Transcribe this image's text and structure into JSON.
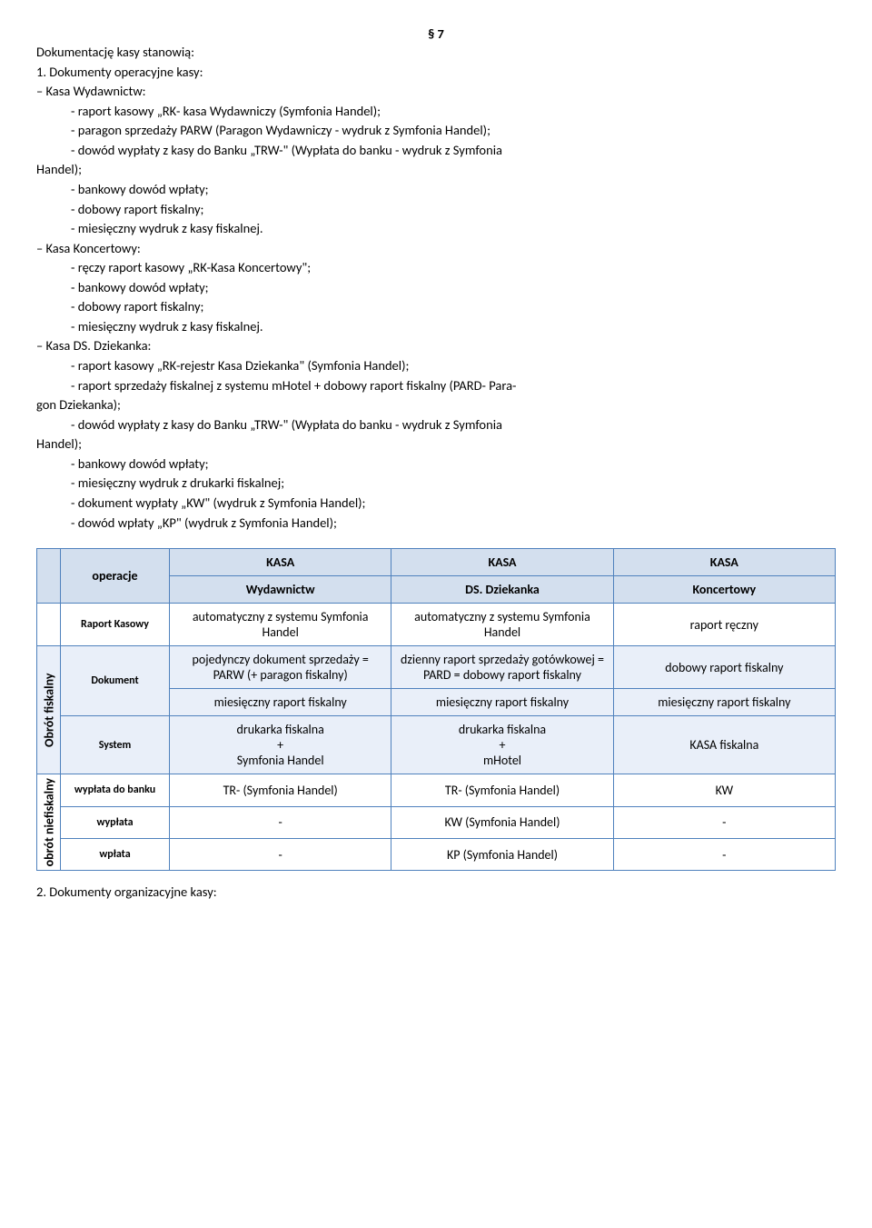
{
  "section_number": "§ 7",
  "intro": "Dokumentację kasy stanowią:",
  "point1_label": "1. Dokumenty operacyjne kasy:",
  "kw_title": "– Kasa Wydawnictw:",
  "kw_items": [
    "- raport kasowy „RK- kasa Wydawniczy (Symfonia Handel);",
    "- paragon sprzedaży PARW (Paragon Wydawniczy - wydruk z Symfonia Handel);",
    "- dowód wypłaty z kasy do Banku „TRW-\" (Wypłata do banku - wydruk z Symfonia",
    "Handel);",
    "- bankowy dowód wpłaty;",
    "- dobowy raport fiskalny;",
    "- miesięczny wydruk z kasy fiskalnej."
  ],
  "kk_title": "– Kasa Koncertowy:",
  "kk_items": [
    "- ręczy raport kasowy „RK-Kasa Koncertowy\";",
    "- bankowy dowód wpłaty;",
    "- dobowy raport fiskalny;",
    "- miesięczny wydruk z kasy fiskalnej."
  ],
  "kd_title": "– Kasa DS. Dziekanka:",
  "kd_items": [
    "- raport kasowy „RK-rejestr Kasa Dziekanka\" (Symfonia Handel);",
    "- raport sprzedaży fiskalnej z systemu mHotel + dobowy raport fiskalny (PARD- Para-",
    "gon     Dziekanka);",
    "- dowód wypłaty z kasy do Banku „TRW-\" (Wypłata do banku - wydruk z Symfonia",
    "Handel);",
    "- bankowy dowód wpłaty;",
    "- miesięczny wydruk z drukarki fiskalnej;",
    "- dokument wypłaty „KW\" (wydruk z Symfonia Handel);",
    "- dowód wpłaty „KP\" (wydruk z Symfonia Handel);"
  ],
  "table": {
    "header": {
      "operacje": "operacje",
      "col1_top": "KASA",
      "col1_bot": "Wydawnictw",
      "col2_top": "KASA",
      "col2_bot": "DS. Dziekanka",
      "col3_top": "KASA",
      "col3_bot": "Koncertowy"
    },
    "raport_kasowy_label": "Raport Kasowy",
    "raport_kasowy": {
      "c1": "automatyczny z systemu Symfonia Handel",
      "c2": "automatyczny z systemu Symfonia Handel",
      "c3": "raport ręczny"
    },
    "obrot_fiskalny_label": "Obrót fiskalny",
    "dokument_label": "Dokument",
    "dokument_r1": {
      "c1": "pojedynczy dokument sprzedaży = PARW (+ paragon fiskalny)",
      "c2": "dzienny raport sprzedaży gotówkowej =  PARD = dobowy raport fiskalny",
      "c3": "dobowy raport fiskalny"
    },
    "dokument_r2": {
      "c1": "miesięczny raport fiskalny",
      "c2": "miesięczny raport fiskalny",
      "c3": "miesięczny raport fiskalny"
    },
    "system_label": "System",
    "system": {
      "c1": "drukarka fiskalna\n+\nSymfonia Handel",
      "c2": "drukarka fiskalna\n+\nmHotel",
      "c3": "KASA fiskalna"
    },
    "obrot_niefiskalny_label": "obrót niefiskalny",
    "wyplata_banku_label": "wypłata do banku",
    "wyplata_banku": {
      "c1": "TR- (Symfonia Handel)",
      "c2": "TR- (Symfonia Handel)",
      "c3": "KW"
    },
    "wyplata_label": "wypłata",
    "wyplata": {
      "c1": "-",
      "c2": "KW (Symfonia Handel)",
      "c3": "-"
    },
    "wplata_label": "wpłata",
    "wplata": {
      "c1": "-",
      "c2": "KP (Symfonia Handel)",
      "c3": "-"
    }
  },
  "point2_label": "2. Dokumenty organizacyjne kasy:"
}
